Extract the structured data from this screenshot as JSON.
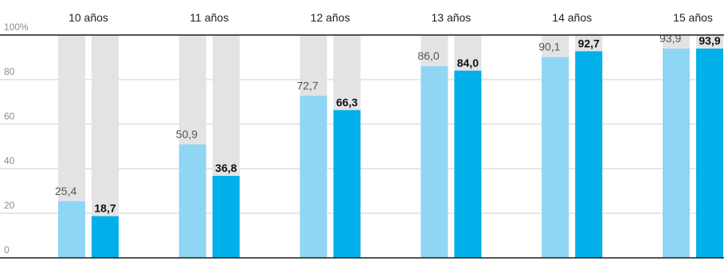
{
  "chart_data": {
    "type": "bar",
    "y_unit": "%",
    "categories": [
      "10 años",
      "11 años",
      "12 años",
      "13 años",
      "14 años",
      "15 años"
    ],
    "series": [
      {
        "values": [
          25.4,
          50.9,
          72.7,
          86.0,
          90.1,
          93.9
        ],
        "labels": [
          "25,4",
          "50,9",
          "72,7",
          "86,0",
          "90,1",
          "93,9"
        ]
      },
      {
        "values": [
          18.7,
          36.8,
          66.3,
          84.0,
          92.7,
          93.9
        ],
        "labels": [
          "18,7",
          "36,8",
          "66,3",
          "84,0",
          "92,7",
          "93,9"
        ]
      }
    ],
    "ylim": [
      0,
      100
    ],
    "yticks": [
      0,
      20,
      40,
      60,
      80,
      100
    ],
    "ytick_labels": [
      "0",
      "20",
      "40",
      "60",
      "80",
      "100%"
    ],
    "grid": true,
    "legend": "none",
    "colors": {
      "series_1": "#8fd6f4",
      "series_2": "#00b0ea",
      "background_bar": "#e3e3e6",
      "gridline": "#cfcfcf",
      "axis": "#1a1a1a"
    }
  }
}
